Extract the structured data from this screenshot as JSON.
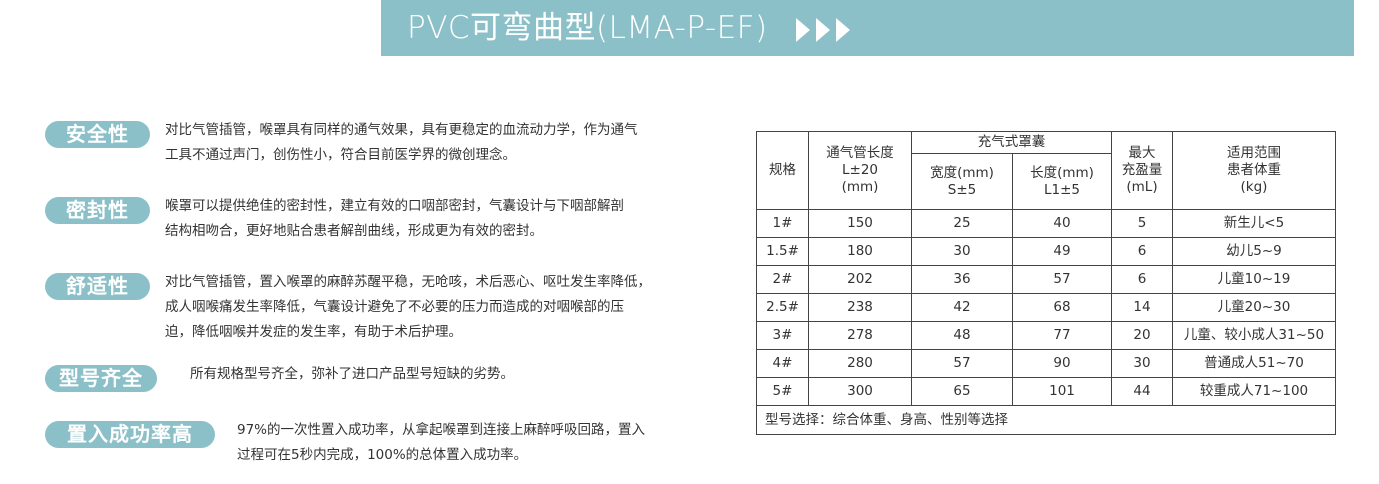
{
  "banner": {
    "title": "PVC可弯曲型(LMA-P-EF)",
    "icon": "triple-chevron-right-icon",
    "color": "#8cc0c8"
  },
  "features": [
    {
      "label": "安全性",
      "lines": [
        "对比气管插管，喉罩具有同样的通气效果，具有更稳定的血流动力学，作为通气",
        "工具不通过声门，创伤性小，符合目前医学界的微创理念。"
      ]
    },
    {
      "label": "密封性",
      "lines": [
        "喉罩可以提供绝佳的密封性，建立有效的口咽部密封，气囊设计与下咽部解剖",
        "结构相吻合，更好地贴合患者解剖曲线，形成更为有效的密封。"
      ]
    },
    {
      "label": "舒适性",
      "lines": [
        "对比气管插管，置入喉罩的麻醉苏醒平稳，无呛咳，术后恶心、呕吐发生率降低，",
        "成人咽喉痛发生率降低，气囊设计避免了不必要的压力而造成的对咽喉部的压",
        "迫，降低咽喉并发症的发生率，有助于术后护理。"
      ]
    },
    {
      "label": "型号齐全",
      "lines": [
        "所有规格型号齐全，弥补了进口产品型号短缺的劣势。"
      ]
    },
    {
      "label": "置入成功率高",
      "lines": [
        "97%的一次性置入成功率，从拿起喉罩到连接上麻醉呼吸回路，置入",
        "过程可在5秒内完成，100%的总体置入成功率。"
      ]
    }
  ],
  "table": {
    "headers": {
      "spec": "规格",
      "tube_length": [
        "通气管长度",
        "L±20",
        "(mm)"
      ],
      "cuff_group": "充气式罩囊",
      "cuff_width": [
        "宽度(mm)",
        "S±5"
      ],
      "cuff_length": [
        "长度(mm)",
        "L1±5"
      ],
      "max_inflation": [
        "最大",
        "充盈量",
        "(mL)"
      ],
      "weight": [
        "适用范围",
        "患者体重",
        "(kg)"
      ]
    },
    "rows": [
      [
        "1#",
        "150",
        "25",
        "40",
        "5",
        "新生儿<5"
      ],
      [
        "1.5#",
        "180",
        "30",
        "49",
        "6",
        "幼儿5~9"
      ],
      [
        "2#",
        "202",
        "36",
        "57",
        "6",
        "儿童10~19"
      ],
      [
        "2.5#",
        "238",
        "42",
        "68",
        "14",
        "儿童20~30"
      ],
      [
        "3#",
        "278",
        "48",
        "77",
        "20",
        "儿童、较小成人31~50"
      ],
      [
        "4#",
        "280",
        "57",
        "90",
        "30",
        "普通成人51~70"
      ],
      [
        "5#",
        "300",
        "65",
        "101",
        "44",
        "较重成人71~100"
      ]
    ],
    "footer": "型号选择：综合体重、身高、性别等选择"
  }
}
